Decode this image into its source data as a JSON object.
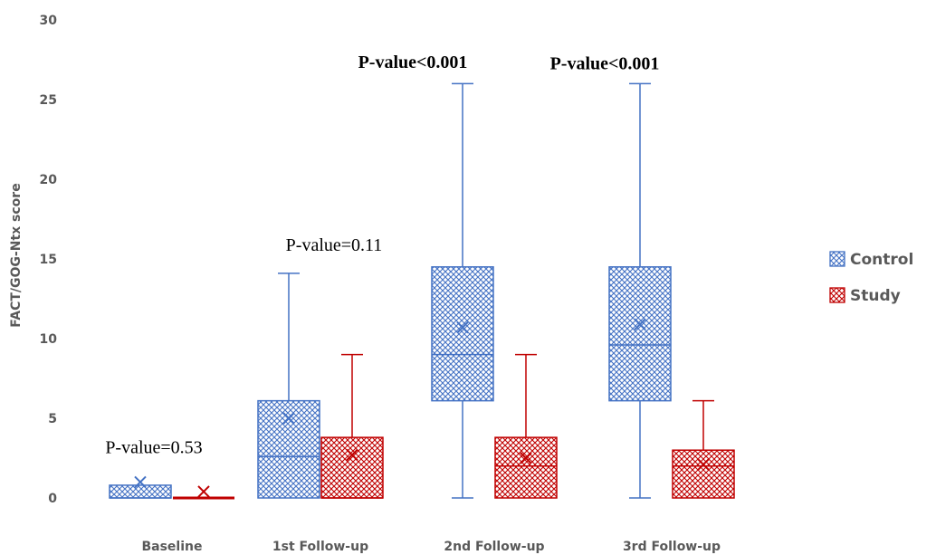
{
  "chart_data": {
    "type": "boxplot",
    "title": "",
    "xlabel": "",
    "ylabel": "FACT/GOG-Ntx score",
    "ylim": [
      0,
      30
    ],
    "yticks": [
      0,
      5,
      10,
      15,
      20,
      25,
      30
    ],
    "grid": false,
    "legend_position": "right",
    "categories": [
      "Baseline",
      "1st Follow-up",
      "2nd Follow-up",
      "3rd Follow-up"
    ],
    "series": [
      {
        "name": "Control",
        "color": "#4472c4",
        "boxes": [
          {
            "min": 0,
            "q1": 0,
            "median": 0,
            "q3": 0.8,
            "max": 0.8,
            "mean": 1.0
          },
          {
            "min": 0,
            "q1": 0,
            "median": 2.6,
            "q3": 6.1,
            "max": 14.1,
            "mean": 5.0
          },
          {
            "min": 0,
            "q1": 6.1,
            "median": 9.0,
            "q3": 14.5,
            "max": 26,
            "mean": 10.7
          },
          {
            "min": 0,
            "q1": 6.1,
            "median": 9.6,
            "q3": 14.5,
            "max": 26,
            "mean": 10.9
          }
        ]
      },
      {
        "name": "Study",
        "color": "#c00000",
        "boxes": [
          {
            "min": 0,
            "q1": 0,
            "median": 0,
            "q3": 0,
            "max": 0,
            "mean": 0.4
          },
          {
            "min": 0,
            "q1": 0,
            "median": 0,
            "q3": 3.8,
            "max": 9,
            "mean": 2.7
          },
          {
            "min": 0,
            "q1": 0,
            "median": 2.0,
            "q3": 3.8,
            "max": 9,
            "mean": 2.5
          },
          {
            "min": 0,
            "q1": 0,
            "median": 2.0,
            "q3": 3.0,
            "max": 6.1,
            "mean": 2.1
          }
        ]
      }
    ],
    "annotations": [
      {
        "text": "P-value=0.53",
        "category": "Baseline",
        "y": 3.2,
        "bold": false
      },
      {
        "text": "P-value=0.11",
        "category": "1st Follow-up",
        "y": 15.9,
        "bold": false
      },
      {
        "text": "P-value<0.001",
        "category": "2nd Follow-up",
        "y": 27.4,
        "bold": true
      },
      {
        "text": "P-value<0.001",
        "category": "3rd Follow-up",
        "y": 27.3,
        "bold": true
      }
    ]
  }
}
